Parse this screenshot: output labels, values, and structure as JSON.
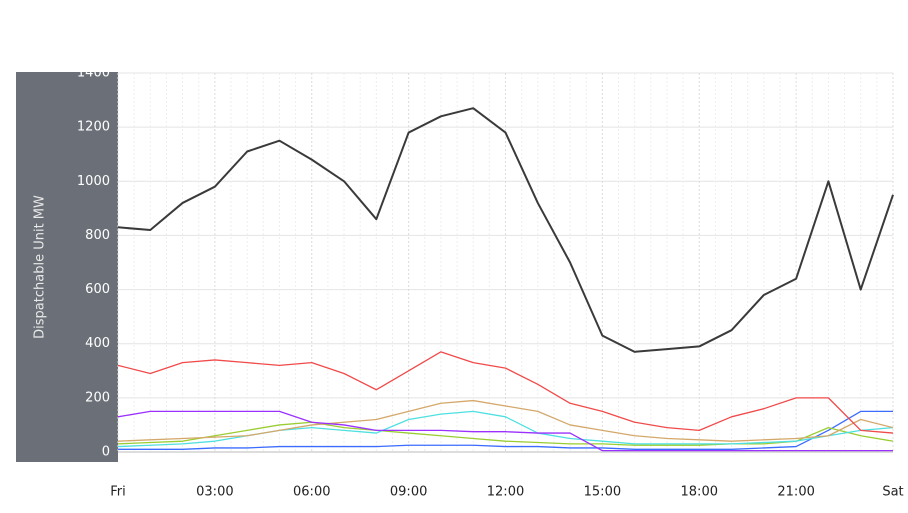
{
  "chart_data": {
    "type": "line",
    "ylabel": "Dispatchable Unit MW",
    "x": [
      0,
      1,
      2,
      3,
      4,
      5,
      6,
      7,
      8,
      9,
      10,
      11,
      12,
      13,
      14,
      15,
      16,
      17,
      18,
      19,
      20,
      21,
      22,
      23,
      24
    ],
    "xlim": [
      0,
      24
    ],
    "xticks": [
      {
        "value": 0,
        "label": "Fri"
      },
      {
        "value": 3,
        "label": "03:00"
      },
      {
        "value": 6,
        "label": "06:00"
      },
      {
        "value": 9,
        "label": "09:00"
      },
      {
        "value": 12,
        "label": "12:00"
      },
      {
        "value": 15,
        "label": "15:00"
      },
      {
        "value": 18,
        "label": "18:00"
      },
      {
        "value": 21,
        "label": "21:00"
      },
      {
        "value": 24,
        "label": "Sat"
      }
    ],
    "ylim": [
      0,
      1400
    ],
    "yticks": [
      0,
      200,
      400,
      600,
      800,
      1000,
      1200,
      1400
    ],
    "grid": true,
    "series": [
      {
        "color": "#3a3a3a",
        "values": [
          830,
          820,
          920,
          980,
          1110,
          1150,
          1080,
          1000,
          860,
          1180,
          1240,
          1270,
          1180,
          920,
          700,
          430,
          370,
          380,
          390,
          450,
          580,
          640,
          1000,
          600,
          950
        ]
      },
      {
        "color": "#f04a4a",
        "values": [
          320,
          290,
          330,
          340,
          330,
          320,
          330,
          290,
          230,
          300,
          370,
          330,
          310,
          250,
          180,
          150,
          110,
          90,
          80,
          130,
          160,
          200,
          200,
          80,
          70
        ]
      },
      {
        "color": "#9b30ff",
        "values": [
          130,
          150,
          150,
          150,
          150,
          150,
          110,
          100,
          80,
          80,
          80,
          75,
          75,
          70,
          70,
          5,
          5,
          5,
          5,
          5,
          5,
          5,
          5,
          5,
          5
        ]
      },
      {
        "color": "#d4a86a",
        "values": [
          40,
          45,
          50,
          55,
          60,
          80,
          100,
          110,
          120,
          150,
          180,
          190,
          170,
          150,
          100,
          80,
          60,
          50,
          45,
          40,
          45,
          50,
          60,
          120,
          90
        ]
      },
      {
        "color": "#4ee0e0",
        "values": [
          20,
          25,
          30,
          40,
          60,
          80,
          90,
          80,
          70,
          120,
          140,
          150,
          130,
          70,
          50,
          40,
          30,
          30,
          30,
          30,
          35,
          40,
          60,
          80,
          90
        ]
      },
      {
        "color": "#9acd32",
        "values": [
          30,
          35,
          40,
          60,
          80,
          100,
          110,
          90,
          80,
          70,
          60,
          50,
          40,
          35,
          30,
          30,
          25,
          25,
          25,
          30,
          30,
          40,
          90,
          60,
          40
        ]
      },
      {
        "color": "#3b6cff",
        "values": [
          10,
          10,
          10,
          15,
          15,
          20,
          20,
          20,
          20,
          25,
          25,
          25,
          20,
          20,
          15,
          15,
          10,
          10,
          10,
          10,
          15,
          20,
          80,
          150,
          150
        ]
      }
    ]
  }
}
